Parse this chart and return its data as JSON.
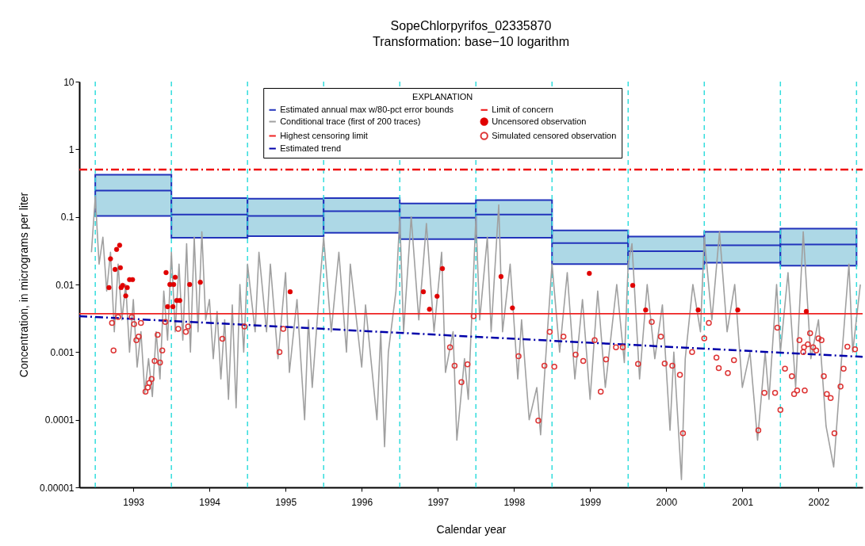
{
  "chart_data": {
    "type": "scatter",
    "title": "SopeChlorpyrifos_02335870",
    "subtitle": "Transformation: base−10 logarithm",
    "xlabel": "Calendar year",
    "ylabel": "Concentration, in micrograms per liter",
    "legend_title": "EXPLANATION",
    "legend": "top",
    "grid": false,
    "log": "y",
    "xlim": [
      1992.79,
      2003.08
    ],
    "ylim": [
      1e-05,
      10
    ],
    "xticks": [
      {
        "value": 1993.5,
        "label": "1993"
      },
      {
        "value": 1994.5,
        "label": "1994"
      },
      {
        "value": 1995.5,
        "label": "1995"
      },
      {
        "value": 1996.5,
        "label": "1996"
      },
      {
        "value": 1997.5,
        "label": "1997"
      },
      {
        "value": 1998.5,
        "label": "1998"
      },
      {
        "value": 1999.5,
        "label": "1999"
      },
      {
        "value": 2000.5,
        "label": "2000"
      },
      {
        "value": 2001.5,
        "label": "2001"
      },
      {
        "value": 2002.5,
        "label": "2002"
      }
    ],
    "yticks": [
      {
        "value": 1e-05,
        "label": "0.00001"
      },
      0.0001,
      0.001,
      0.01,
      0.1,
      1,
      10
    ],
    "ref_lines": [
      {
        "axis": "x",
        "value": 1993,
        "color": "#33dddd",
        "line_style": "dashed"
      },
      {
        "axis": "x",
        "value": 1994,
        "color": "#33dddd",
        "line_style": "dashed"
      },
      {
        "axis": "x",
        "value": 1995,
        "color": "#33dddd",
        "line_style": "dashed"
      },
      {
        "axis": "x",
        "value": 1996,
        "color": "#33dddd",
        "line_style": "dashed"
      },
      {
        "axis": "x",
        "value": 1997,
        "color": "#33dddd",
        "line_style": "dashed"
      },
      {
        "axis": "x",
        "value": 1998,
        "color": "#33dddd",
        "line_style": "dashed"
      },
      {
        "axis": "x",
        "value": 1999,
        "color": "#33dddd",
        "line_style": "dashed"
      },
      {
        "axis": "x",
        "value": 2000,
        "color": "#33dddd",
        "line_style": "dashed"
      },
      {
        "axis": "x",
        "value": 2001,
        "color": "#33dddd",
        "line_style": "dashed"
      },
      {
        "axis": "x",
        "value": 2002,
        "color": "#33dddd",
        "line_style": "dashed"
      },
      {
        "axis": "x",
        "value": 2003,
        "color": "#33dddd",
        "line_style": "dashed"
      }
    ],
    "series": [
      {
        "name": "Estimated annual max w/80-pct error bounds",
        "type": "box",
        "color": "#2233bb",
        "colors": [
          "#add8e6",
          "#add8e6",
          "#add8e6",
          "#add8e6",
          "#add8e6",
          "#add8e6",
          "#add8e6",
          "#add8e6",
          "#add8e6",
          "#add8e6"
        ],
        "x": [
          1993.5,
          1994.5,
          1995.5,
          1996.5,
          1997.5,
          1998.5,
          1999.5,
          2000.5,
          2001.5,
          2002.5
        ],
        "boxes": [
          {
            "low": 0.103,
            "q1": 0.103,
            "median": 0.245,
            "q3": 0.42,
            "high": 0.42
          },
          {
            "low": 0.049,
            "q1": 0.049,
            "median": 0.108,
            "q3": 0.19,
            "high": 0.19
          },
          {
            "low": 0.052,
            "q1": 0.052,
            "median": 0.103,
            "q3": 0.186,
            "high": 0.186
          },
          {
            "low": 0.058,
            "q1": 0.058,
            "median": 0.121,
            "q3": 0.19,
            "high": 0.19
          },
          {
            "low": 0.047,
            "q1": 0.047,
            "median": 0.097,
            "q3": 0.158,
            "high": 0.158
          },
          {
            "low": 0.049,
            "q1": 0.049,
            "median": 0.108,
            "q3": 0.177,
            "high": 0.177
          },
          {
            "low": 0.02,
            "q1": 0.02,
            "median": 0.041,
            "q3": 0.063,
            "high": 0.063
          },
          {
            "low": 0.017,
            "q1": 0.017,
            "median": 0.031,
            "q3": 0.051,
            "high": 0.051
          },
          {
            "low": 0.021,
            "q1": 0.021,
            "median": 0.038,
            "q3": 0.06,
            "high": 0.06
          },
          {
            "low": 0.019,
            "q1": 0.019,
            "median": 0.039,
            "q3": 0.067,
            "high": 0.067
          }
        ]
      },
      {
        "name": "Conditional trace (first of 200 traces)",
        "type": "line",
        "color": "#a0a0a0",
        "line_style": "solid",
        "x": [
          1992.95,
          1993.0,
          1993.05,
          1993.1,
          1993.15,
          1993.2,
          1993.25,
          1993.3,
          1993.35,
          1993.4,
          1993.45,
          1993.5,
          1993.55,
          1993.6,
          1993.65,
          1993.7,
          1993.75,
          1993.8,
          1993.85,
          1993.9,
          1993.95,
          1994.0,
          1994.05,
          1994.1,
          1994.15,
          1994.2,
          1994.25,
          1994.3,
          1994.35,
          1994.4,
          1994.45,
          1994.5,
          1994.55,
          1994.6,
          1994.65,
          1994.7,
          1994.75,
          1994.8,
          1994.85,
          1994.9,
          1994.95,
          1995.0,
          1995.1,
          1995.15,
          1995.25,
          1995.3,
          1995.4,
          1995.5,
          1995.55,
          1995.65,
          1995.75,
          1995.8,
          1995.85,
          1995.95,
          1996.0,
          1996.1,
          1996.2,
          1996.3,
          1996.35,
          1996.5,
          1996.55,
          1996.7,
          1996.75,
          1996.8,
          1996.85,
          1996.95,
          1997.0,
          1997.05,
          1997.15,
          1997.25,
          1997.35,
          1997.45,
          1997.55,
          1997.6,
          1997.7,
          1997.75,
          1997.85,
          1997.9,
          1998.0,
          1998.05,
          1998.15,
          1998.2,
          1998.3,
          1998.35,
          1998.45,
          1998.55,
          1998.6,
          1998.7,
          1998.8,
          1998.85,
          1998.95,
          1999.0,
          1999.1,
          1999.2,
          1999.3,
          1999.4,
          1999.5,
          1999.6,
          1999.7,
          1999.85,
          1999.95,
          2000.0,
          2000.05,
          2000.15,
          2000.25,
          2000.35,
          2000.45,
          2000.55,
          2000.6,
          2000.7,
          2000.75,
          2000.85,
          2000.95,
          2001.0,
          2001.1,
          2001.2,
          2001.3,
          2001.4,
          2001.5,
          2001.6,
          2001.7,
          2001.8,
          2001.85,
          2001.95,
          2002.0,
          2002.1,
          2002.2,
          2002.3,
          2002.4,
          2002.5,
          2002.6,
          2002.7,
          2002.8,
          2002.9,
          2002.95,
          2003.05
        ],
        "values": [
          0.03,
          0.2,
          0.02,
          0.05,
          0.008,
          0.03,
          0.002,
          0.02,
          0.003,
          0.01,
          0.001,
          0.006,
          0.0006,
          0.002,
          0.00025,
          0.0008,
          0.00022,
          0.002,
          0.0004,
          0.008,
          0.0015,
          0.03,
          0.002,
          0.02,
          0.0015,
          0.04,
          0.001,
          0.05,
          0.002,
          0.06,
          0.003,
          0.006,
          0.0008,
          0.004,
          0.0004,
          0.003,
          0.0002,
          0.005,
          0.00015,
          0.01,
          0.001,
          0.02,
          0.002,
          0.03,
          0.002,
          0.02,
          0.0008,
          0.015,
          0.0005,
          0.006,
          0.0001,
          0.003,
          0.0003,
          0.01,
          0.05,
          0.002,
          0.03,
          0.001,
          0.02,
          0.0006,
          0.005,
          0.0001,
          0.002,
          4e-05,
          0.001,
          0.008,
          0.1,
          0.002,
          0.1,
          0.003,
          0.08,
          0.002,
          0.03,
          0.0005,
          0.002,
          5e-05,
          0.0008,
          0.0002,
          0.1,
          0.003,
          0.05,
          0.002,
          0.15,
          0.002,
          0.02,
          0.0004,
          0.003,
          0.0001,
          0.0003,
          6e-05,
          0.003,
          0.02,
          0.001,
          0.015,
          0.0004,
          0.006,
          0.0002,
          0.008,
          0.0003,
          0.01,
          0.0007,
          0.02,
          0.04,
          0.0004,
          0.01,
          0.0008,
          0.005,
          7e-05,
          0.001,
          1.3e-05,
          0.0008,
          0.01,
          0.002,
          0.05,
          0.003,
          0.06,
          0.002,
          0.01,
          0.0003,
          0.001,
          5e-05,
          0.001,
          0.0002,
          0.01,
          0.001,
          0.015,
          0.0003,
          0.06,
          0.0008,
          0.003,
          8e-05,
          2e-05,
          0.0007,
          0.02,
          0.001,
          0.01
        ]
      },
      {
        "name": "Highest censoring limit",
        "type": "line",
        "color": "#ee2222",
        "line_style": "solid",
        "x": [
          1992.79,
          2003.08
        ],
        "values": [
          0.0037,
          0.0037
        ]
      },
      {
        "name": "Estimated trend",
        "type": "line",
        "color": "#0000aa",
        "line_style": "dashdot",
        "x": [
          1992.79,
          2003.08
        ],
        "values": [
          0.0034,
          0.00085
        ]
      },
      {
        "name": "Limit of concern",
        "type": "line",
        "color": "#ee1111",
        "line_style": "dashdot",
        "x": [
          1992.79,
          2003.08
        ],
        "values": [
          0.5,
          0.5
        ]
      },
      {
        "name": "Uncensored observation",
        "marker": "circle",
        "color": "#e00000",
        "x": [
          1993.18,
          1993.2,
          1993.26,
          1993.28,
          1993.32,
          1993.33,
          1993.34,
          1993.36,
          1993.4,
          1993.42,
          1993.45,
          1993.49,
          1993.93,
          1993.95,
          1993.98,
          1994.02,
          1994.03,
          1994.05,
          1994.07,
          1994.11,
          1994.24,
          1994.38,
          1995.56,
          1997.31,
          1997.39,
          1997.49,
          1997.56,
          1998.33,
          1998.48,
          1999.49,
          2000.06,
          2000.23,
          2000.92,
          2001.44,
          2002.34
        ],
        "values": [
          0.009,
          0.024,
          0.0167,
          0.033,
          0.038,
          0.0177,
          0.009,
          0.0097,
          0.0068,
          0.009,
          0.0118,
          0.0118,
          0.015,
          0.0047,
          0.01,
          0.0047,
          0.01,
          0.0128,
          0.0058,
          0.0058,
          0.01,
          0.0108,
          0.0078,
          0.0078,
          0.0043,
          0.0067,
          0.0172,
          0.0131,
          0.0045,
          0.0146,
          0.0097,
          0.0042,
          0.0042,
          0.0042,
          0.004
        ]
      },
      {
        "name": "Simulated censored observation",
        "marker": "circle-open",
        "color": "#dd3333",
        "x": [
          1993.22,
          1993.24,
          1993.3,
          1993.48,
          1993.51,
          1993.6,
          1993.57,
          1993.54,
          1993.66,
          1993.69,
          1993.71,
          1993.74,
          1993.78,
          1993.85,
          1993.82,
          1993.88,
          1993.92,
          1994.09,
          1994.19,
          1994.22,
          1994.67,
          1994.96,
          1995.42,
          1995.47,
          1997.97,
          1997.66,
          1997.72,
          1997.89,
          1997.81,
          1998.56,
          1998.82,
          1998.9,
          1998.97,
          1999.03,
          1999.15,
          1999.31,
          1999.41,
          1999.56,
          1999.64,
          1999.71,
          1999.84,
          1999.93,
          2000.13,
          2000.31,
          2000.43,
          2000.48,
          2000.58,
          2000.68,
          2000.72,
          2000.84,
          2001.0,
          2001.06,
          2001.16,
          2001.19,
          2001.31,
          2001.39,
          2001.71,
          2001.79,
          2001.93,
          2001.96,
          2002.0,
          2002.06,
          2002.15,
          2002.18,
          2002.22,
          2002.25,
          2002.3,
          2002.31,
          2002.32,
          2002.36,
          2002.39,
          2002.43,
          2002.47,
          2002.5,
          2002.54,
          2002.57,
          2002.61,
          2002.66,
          2002.71,
          2002.79,
          2002.83,
          2002.88,
          2002.98
        ],
        "values": [
          0.0027,
          0.00106,
          0.0033,
          0.0033,
          0.0026,
          0.0027,
          0.0017,
          0.0015,
          0.00026,
          0.0003,
          0.00035,
          0.0004,
          0.00074,
          0.0007,
          0.0018,
          0.00106,
          0.0028,
          0.0022,
          0.002,
          0.0024,
          0.00158,
          0.0024,
          0.001,
          0.0022,
          0.0034,
          0.00118,
          0.00063,
          0.00066,
          0.00036,
          0.00087,
          9.7e-05,
          0.00063,
          0.002,
          0.00061,
          0.0017,
          0.00092,
          0.00074,
          0.0015,
          0.00026,
          0.00078,
          0.00118,
          0.00118,
          0.00067,
          0.0028,
          0.0017,
          0.00068,
          0.00063,
          0.00046,
          6.3e-05,
          0.001,
          0.0016,
          0.0027,
          0.00083,
          0.00058,
          0.00049,
          0.00076,
          7e-05,
          0.00025,
          0.00025,
          0.0023,
          0.00014,
          0.00057,
          0.00044,
          0.00024,
          0.00027,
          0.0015,
          0.001,
          0.00118,
          0.00027,
          0.0013,
          0.0019,
          0.00118,
          0.00106,
          0.0016,
          0.0015,
          0.00044,
          0.00024,
          0.00021,
          6.3e-05,
          0.00031,
          0.00057,
          0.0012,
          0.0011
        ]
      }
    ]
  }
}
